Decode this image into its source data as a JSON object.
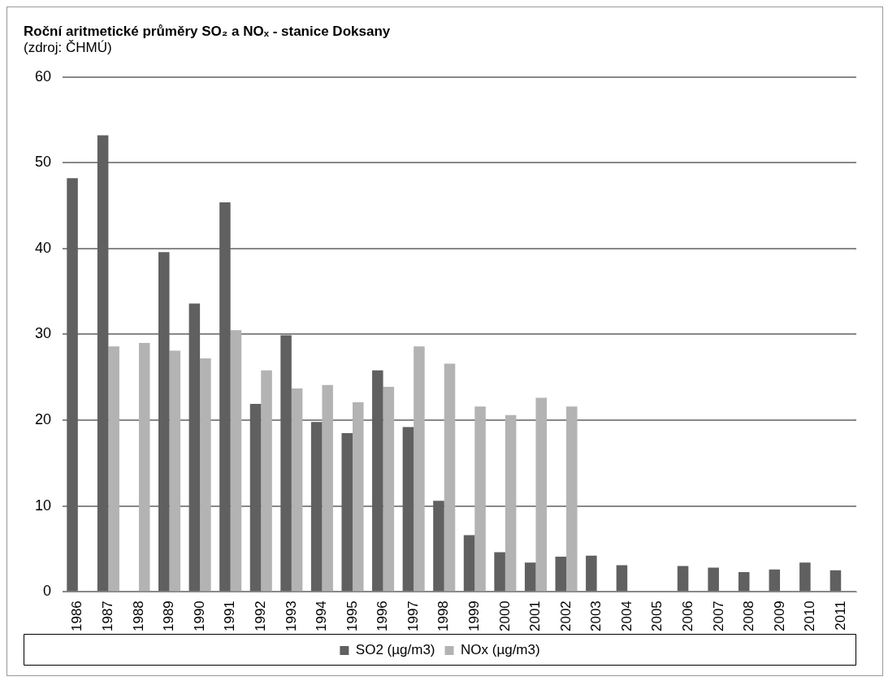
{
  "chart_data": {
    "type": "bar",
    "title": "Roční aritmetické průměry SO₂ a NOₓ - stanice Doksany",
    "subtitle": "(zdroj: ČHMÚ)",
    "categories": [
      "1986",
      "1987",
      "1988",
      "1989",
      "1990",
      "1991",
      "1992",
      "1993",
      "1994",
      "1995",
      "1996",
      "1997",
      "1998",
      "1999",
      "2000",
      "2001",
      "2002",
      "2003",
      "2004",
      "2005",
      "2006",
      "2007",
      "2008",
      "2009",
      "2010",
      "2011"
    ],
    "series": [
      {
        "name": "SO2 (µg/m3)",
        "color": "#606060",
        "values": [
          48.2,
          53.2,
          null,
          39.6,
          33.6,
          45.4,
          21.9,
          29.9,
          19.8,
          18.5,
          25.8,
          19.2,
          10.6,
          6.6,
          4.6,
          3.4,
          4.1,
          4.2,
          3.1,
          null,
          3.0,
          2.8,
          2.3,
          2.6,
          3.4,
          2.5
        ]
      },
      {
        "name": "NOx (µg/m3)",
        "color": "#b3b3b3",
        "values": [
          null,
          28.6,
          29.0,
          28.1,
          27.2,
          30.5,
          25.8,
          23.7,
          24.1,
          22.1,
          23.9,
          28.6,
          26.6,
          21.6,
          20.6,
          22.6,
          21.6,
          null,
          null,
          null,
          null,
          null,
          null,
          null,
          null,
          null
        ]
      }
    ],
    "ylim": [
      0,
      60
    ],
    "yticks": [
      0,
      10,
      20,
      30,
      40,
      50,
      60
    ],
    "grid": "y",
    "legend": "bottom"
  }
}
